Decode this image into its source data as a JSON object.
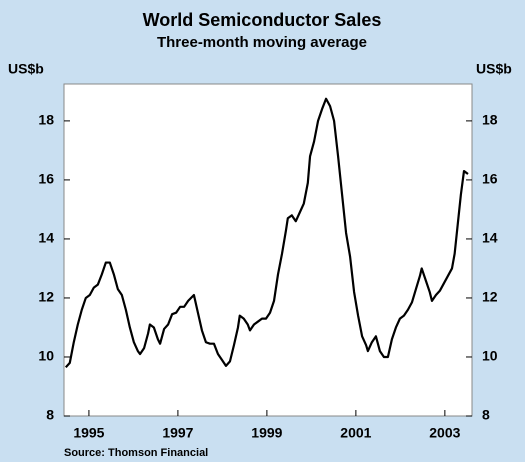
{
  "chart_data": {
    "type": "line",
    "title": "World Semiconductor Sales",
    "subtitle": "Three-month moving average",
    "y_label": "US$b",
    "y2_label": "US$b",
    "source": "Source: Thomson Financial",
    "x": [
      1994.48,
      1994.57,
      1994.66,
      1994.75,
      1994.84,
      1994.93,
      1995.02,
      1995.11,
      1995.2,
      1995.29,
      1995.38,
      1995.47,
      1995.56,
      1995.65,
      1995.74,
      1995.83,
      1995.92,
      1996.01,
      1996.1,
      1996.15,
      1996.24,
      1996.33,
      1996.37,
      1996.46,
      1996.55,
      1996.6,
      1996.69,
      1996.78,
      1996.87,
      1996.96,
      1997.05,
      1997.14,
      1997.23,
      1997.36,
      1997.45,
      1997.54,
      1997.63,
      1997.72,
      1997.81,
      1997.9,
      1997.99,
      1998.08,
      1998.17,
      1998.26,
      1998.35,
      1998.39,
      1998.48,
      1998.57,
      1998.62,
      1998.71,
      1998.8,
      1998.89,
      1998.98,
      1999.07,
      1999.16,
      1999.25,
      1999.34,
      1999.43,
      1999.47,
      1999.56,
      1999.65,
      1999.74,
      1999.83,
      1999.92,
      1999.97,
      2000.06,
      2000.15,
      2000.24,
      2000.33,
      2000.42,
      2000.51,
      2000.6,
      2000.69,
      2000.78,
      2000.87,
      2000.96,
      2001.05,
      2001.14,
      2001.23,
      2001.27,
      2001.36,
      2001.45,
      2001.54,
      2001.63,
      2001.72,
      2001.81,
      2001.9,
      2001.99,
      2002.08,
      2002.17,
      2002.26,
      2002.35,
      2002.44,
      2002.48,
      2002.57,
      2002.66,
      2002.71,
      2002.8,
      2002.89,
      2002.98,
      2003.07,
      2003.16,
      2003.22,
      2003.29,
      2003.36,
      2003.43,
      2003.52
    ],
    "series": [
      {
        "name": "World Semiconductor Sales",
        "color": "#000000",
        "values": [
          9.65,
          9.8,
          10.5,
          11.1,
          11.6,
          12.0,
          12.1,
          12.35,
          12.45,
          12.8,
          13.2,
          13.2,
          12.8,
          12.3,
          12.1,
          11.6,
          11.0,
          10.5,
          10.2,
          10.1,
          10.3,
          10.8,
          11.1,
          11.0,
          10.6,
          10.45,
          10.95,
          11.1,
          11.45,
          11.5,
          11.7,
          11.7,
          11.9,
          12.1,
          11.5,
          10.9,
          10.5,
          10.45,
          10.45,
          10.1,
          9.9,
          9.7,
          9.85,
          10.4,
          11.0,
          11.4,
          11.3,
          11.1,
          10.9,
          11.1,
          11.2,
          11.3,
          11.3,
          11.5,
          11.9,
          12.8,
          13.5,
          14.3,
          14.7,
          14.8,
          14.6,
          14.9,
          15.2,
          15.9,
          16.8,
          17.3,
          18.0,
          18.4,
          18.75,
          18.5,
          18.0,
          16.8,
          15.5,
          14.2,
          13.4,
          12.2,
          11.4,
          10.7,
          10.4,
          10.2,
          10.5,
          10.7,
          10.2,
          10.0,
          10.0,
          10.6,
          11.0,
          11.3,
          11.4,
          11.6,
          11.85,
          12.3,
          12.75,
          13.0,
          12.6,
          12.2,
          11.9,
          12.1,
          12.25,
          12.5,
          12.75,
          13.0,
          13.5,
          14.5,
          15.5,
          16.3,
          16.2
        ]
      }
    ],
    "xlim": [
      1994.44,
      2003.61
    ],
    "xticks": [
      1995,
      1997,
      1999,
      2001,
      2003
    ],
    "ylim": [
      8,
      19.25
    ],
    "yticks": [
      8,
      10,
      12,
      14,
      16,
      18
    ],
    "y2lim": [
      8,
      19.25
    ],
    "y2ticks": [
      8,
      10,
      12,
      14,
      16,
      18
    ]
  }
}
